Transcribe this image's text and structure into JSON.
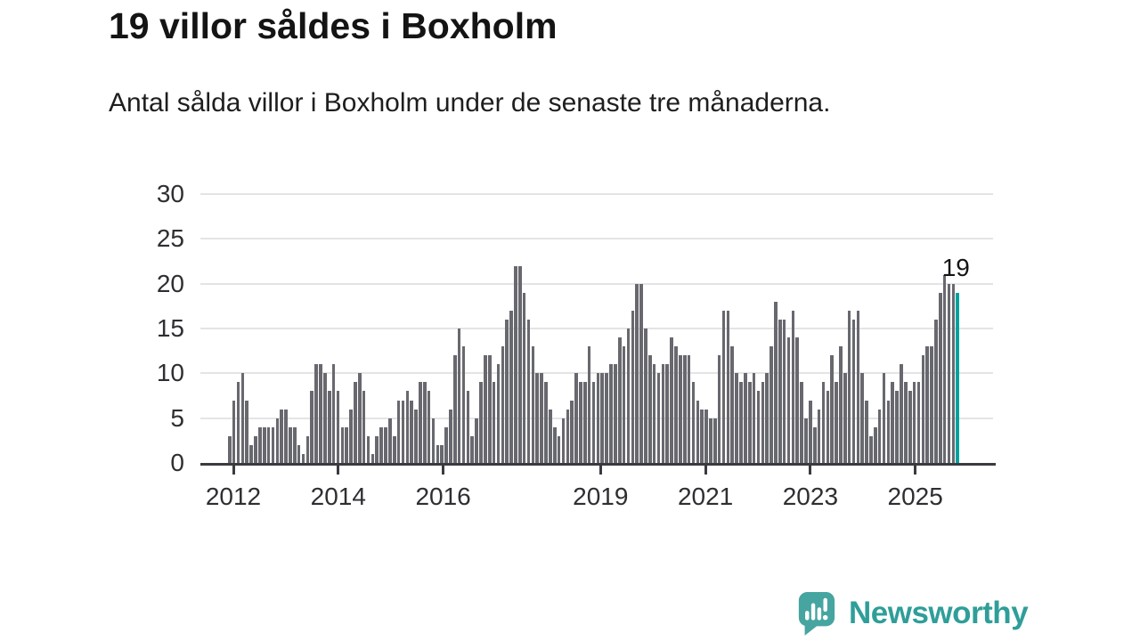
{
  "title": "19 villor såldes i Boxholm",
  "subtitle": "Antal sålda villor i Boxholm under de senaste tre månaderna.",
  "logo": {
    "text": "Newsworthy"
  },
  "colors": {
    "bar": "#68686f",
    "highlight": "#00a29c",
    "axis": "#3a3a40",
    "grid": "#e4e4e6",
    "tick_text": "#2e2e33",
    "title": "#141414",
    "subtitle": "#1e1e1e",
    "annotation": "#141414",
    "logo_text": "#2f9e99",
    "logo_bg": "#46a5a0"
  },
  "chart_data": {
    "type": "bar",
    "title": "19 villor såldes i Boxholm",
    "subtitle": "Antal sålda villor i Boxholm under de senaste tre månaderna.",
    "unit": "villor per 3-månadersperiod",
    "x_start_year": 2012,
    "months_per_bar": 1,
    "ylim": [
      0,
      30
    ],
    "yticks": [
      0,
      5,
      10,
      15,
      20,
      25,
      30
    ],
    "x_tick_years": [
      2012,
      2014,
      2016,
      2019,
      2021,
      2023,
      2025
    ],
    "grid": true,
    "highlight_last": true,
    "last_value_label": "19",
    "values": [
      3,
      7,
      9,
      10,
      7,
      2,
      3,
      4,
      4,
      4,
      4,
      5,
      6,
      6,
      4,
      4,
      2,
      1,
      3,
      8,
      11,
      11,
      10,
      8,
      11,
      8,
      4,
      4,
      6,
      9,
      10,
      8,
      3,
      1,
      3,
      4,
      4,
      5,
      3,
      7,
      7,
      8,
      7,
      6,
      9,
      9,
      8,
      5,
      2,
      2,
      4,
      6,
      12,
      15,
      13,
      8,
      3,
      5,
      9,
      12,
      12,
      9,
      11,
      13,
      16,
      17,
      22,
      22,
      19,
      16,
      13,
      10,
      10,
      9,
      6,
      4,
      3,
      5,
      6,
      7,
      10,
      9,
      9,
      13,
      9,
      10,
      10,
      10,
      11,
      11,
      14,
      13,
      15,
      17,
      20,
      20,
      15,
      12,
      11,
      10,
      11,
      11,
      14,
      13,
      12,
      12,
      12,
      9,
      7,
      6,
      6,
      5,
      5,
      12,
      17,
      17,
      13,
      10,
      9,
      10,
      9,
      10,
      8,
      9,
      10,
      13,
      18,
      16,
      16,
      14,
      17,
      14,
      9,
      5,
      7,
      4,
      6,
      9,
      8,
      12,
      9,
      13,
      10,
      17,
      16,
      17,
      10,
      7,
      3,
      4,
      6,
      10,
      7,
      9,
      8,
      11,
      9,
      8,
      9,
      9,
      12,
      13,
      13,
      16,
      19,
      21,
      20,
      20,
      19
    ]
  }
}
